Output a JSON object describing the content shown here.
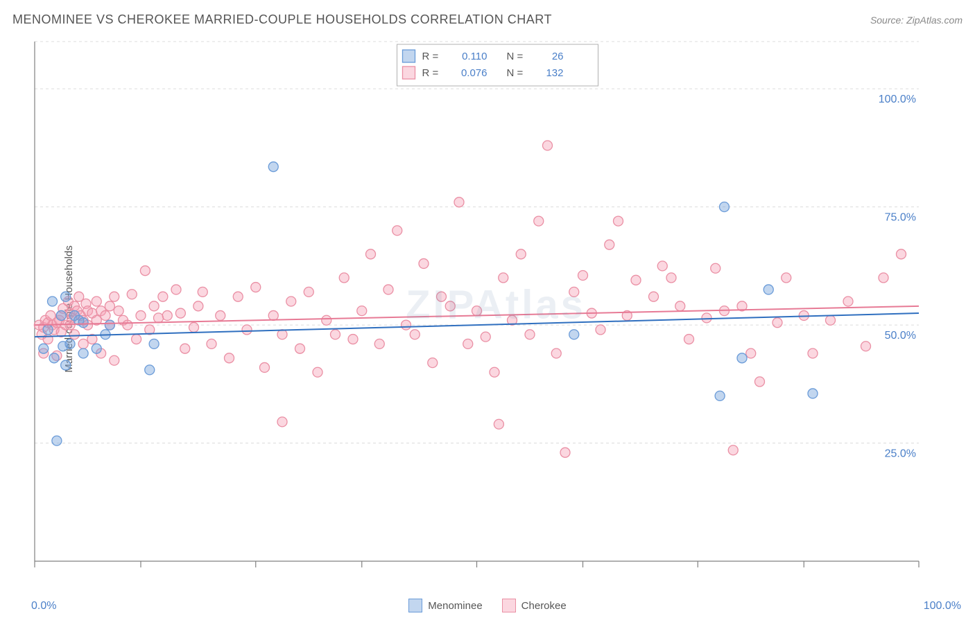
{
  "title": "MENOMINEE VS CHEROKEE MARRIED-COUPLE HOUSEHOLDS CORRELATION CHART",
  "source_label": "Source: ZipAtlas.com",
  "watermark": "ZIPAtlas",
  "ylabel": "Married-couple Households",
  "chart": {
    "type": "scatter",
    "background_color": "#ffffff",
    "grid_color": "#dcdcdc",
    "grid_dash": "4,4",
    "axis_color": "#808080",
    "tick_color": "#808080",
    "x_range": [
      0,
      100
    ],
    "y_range": [
      0,
      110
    ],
    "x_ticks": [
      0,
      12,
      25,
      37,
      50,
      62,
      75,
      87,
      100
    ],
    "y_gridlines": [
      {
        "v": 25,
        "label": "25.0%"
      },
      {
        "v": 50,
        "label": "50.0%"
      },
      {
        "v": 75,
        "label": "75.0%"
      },
      {
        "v": 100,
        "label": "100.0%"
      }
    ],
    "y_label_color": "#4a7fc8",
    "y_label_fontsize": 16,
    "x_min_label": "0.0%",
    "x_max_label": "100.0%",
    "marker_radius": 7,
    "marker_stroke_width": 1.3,
    "trend_line_width": 2,
    "series": [
      {
        "name": "Menominee",
        "fill": "rgba(120,165,220,0.45)",
        "stroke": "#6a9bd8",
        "line_color": "#2f6fbf",
        "R": "0.110",
        "N": "26",
        "trend": {
          "y_at_x0": 47.5,
          "y_at_x100": 52.5
        },
        "points": [
          [
            1,
            45
          ],
          [
            1.5,
            49
          ],
          [
            2,
            55
          ],
          [
            2.2,
            43
          ],
          [
            2.5,
            25.5
          ],
          [
            3,
            52
          ],
          [
            3.2,
            45.5
          ],
          [
            3.5,
            41.5
          ],
          [
            3.5,
            56
          ],
          [
            4,
            46
          ],
          [
            4.5,
            52
          ],
          [
            5,
            51
          ],
          [
            5.5,
            50.5
          ],
          [
            5.5,
            44
          ],
          [
            7,
            45
          ],
          [
            8,
            48
          ],
          [
            8.5,
            50
          ],
          [
            13,
            40.5
          ],
          [
            13.5,
            46
          ],
          [
            27,
            83.5
          ],
          [
            61,
            48
          ],
          [
            77.5,
            35
          ],
          [
            78,
            75
          ],
          [
            80,
            43
          ],
          [
            83,
            57.5
          ],
          [
            88,
            35.5
          ]
        ]
      },
      {
        "name": "Cherokee",
        "fill": "rgba(245,160,180,0.42)",
        "stroke": "#ea8fa4",
        "line_color": "#e77a95",
        "R": "0.076",
        "N": "132",
        "trend": {
          "y_at_x0": 50,
          "y_at_x100": 54
        },
        "points": [
          [
            0.5,
            50
          ],
          [
            0.8,
            48
          ],
          [
            1,
            49.5
          ],
          [
            1,
            44
          ],
          [
            1.2,
            51
          ],
          [
            1.5,
            50.5
          ],
          [
            1.5,
            47
          ],
          [
            1.8,
            52
          ],
          [
            2,
            50
          ],
          [
            2.2,
            49
          ],
          [
            2.5,
            50.5
          ],
          [
            2.5,
            43.5
          ],
          [
            2.8,
            51
          ],
          [
            3,
            52
          ],
          [
            3,
            48.5
          ],
          [
            3.2,
            53.5
          ],
          [
            3.5,
            50
          ],
          [
            3.8,
            55
          ],
          [
            4,
            52.5
          ],
          [
            4,
            50
          ],
          [
            4.2,
            51.5
          ],
          [
            4.5,
            54
          ],
          [
            4.5,
            48
          ],
          [
            4.8,
            53
          ],
          [
            5,
            56
          ],
          [
            5.2,
            52
          ],
          [
            5.5,
            51
          ],
          [
            5.5,
            46
          ],
          [
            5.8,
            54.5
          ],
          [
            6,
            53
          ],
          [
            6,
            50
          ],
          [
            6.5,
            52.5
          ],
          [
            6.5,
            47
          ],
          [
            7,
            55
          ],
          [
            7,
            51
          ],
          [
            7.5,
            53
          ],
          [
            7.5,
            44
          ],
          [
            8,
            52
          ],
          [
            8.5,
            54
          ],
          [
            8.5,
            50
          ],
          [
            9,
            56
          ],
          [
            9,
            42.5
          ],
          [
            9.5,
            53
          ],
          [
            10,
            51
          ],
          [
            10.5,
            50
          ],
          [
            11,
            56.5
          ],
          [
            11.5,
            47
          ],
          [
            12,
            52
          ],
          [
            12.5,
            61.5
          ],
          [
            13,
            49
          ],
          [
            13.5,
            54
          ],
          [
            14,
            51.5
          ],
          [
            14.5,
            56
          ],
          [
            15,
            52
          ],
          [
            16,
            57.5
          ],
          [
            16.5,
            52.5
          ],
          [
            17,
            45
          ],
          [
            18,
            49.5
          ],
          [
            18.5,
            54
          ],
          [
            19,
            57
          ],
          [
            20,
            46
          ],
          [
            21,
            52
          ],
          [
            22,
            43
          ],
          [
            23,
            56
          ],
          [
            24,
            49
          ],
          [
            25,
            58
          ],
          [
            26,
            41
          ],
          [
            27,
            52
          ],
          [
            28,
            48
          ],
          [
            28,
            29.5
          ],
          [
            29,
            55
          ],
          [
            30,
            45
          ],
          [
            31,
            57
          ],
          [
            32,
            40
          ],
          [
            33,
            51
          ],
          [
            34,
            48
          ],
          [
            35,
            60
          ],
          [
            36,
            47
          ],
          [
            37,
            53
          ],
          [
            38,
            65
          ],
          [
            39,
            46
          ],
          [
            40,
            57.5
          ],
          [
            41,
            70
          ],
          [
            42,
            50
          ],
          [
            43,
            48
          ],
          [
            44,
            63
          ],
          [
            45,
            42
          ],
          [
            46,
            56
          ],
          [
            47,
            54
          ],
          [
            48,
            76
          ],
          [
            49,
            46
          ],
          [
            50,
            53
          ],
          [
            51,
            47.5
          ],
          [
            52,
            40
          ],
          [
            52.5,
            29
          ],
          [
            53,
            60
          ],
          [
            54,
            51
          ],
          [
            55,
            65
          ],
          [
            56,
            48
          ],
          [
            57,
            72
          ],
          [
            58,
            88
          ],
          [
            59,
            44
          ],
          [
            60,
            23
          ],
          [
            61,
            57
          ],
          [
            62,
            60.5
          ],
          [
            63,
            52.5
          ],
          [
            64,
            49
          ],
          [
            65,
            67
          ],
          [
            66,
            72
          ],
          [
            67,
            52
          ],
          [
            68,
            59.5
          ],
          [
            70,
            56
          ],
          [
            71,
            62.5
          ],
          [
            72,
            60
          ],
          [
            73,
            54
          ],
          [
            74,
            47
          ],
          [
            76,
            51.5
          ],
          [
            77,
            62
          ],
          [
            78,
            53
          ],
          [
            79,
            23.5
          ],
          [
            80,
            54
          ],
          [
            81,
            44
          ],
          [
            82,
            38
          ],
          [
            84,
            50.5
          ],
          [
            85,
            60
          ],
          [
            87,
            52
          ],
          [
            88,
            44
          ],
          [
            90,
            51
          ],
          [
            92,
            55
          ],
          [
            94,
            45.5
          ],
          [
            96,
            60
          ],
          [
            98,
            65
          ]
        ]
      }
    ],
    "stats_legend": {
      "box_fill": "#ffffff",
      "box_stroke": "#b0b0b0",
      "value_color": "#4a7fc8",
      "label_color": "#555555",
      "fontsize": 15
    },
    "bottom_legend": {
      "fontsize": 15,
      "label_color": "#555555"
    }
  }
}
